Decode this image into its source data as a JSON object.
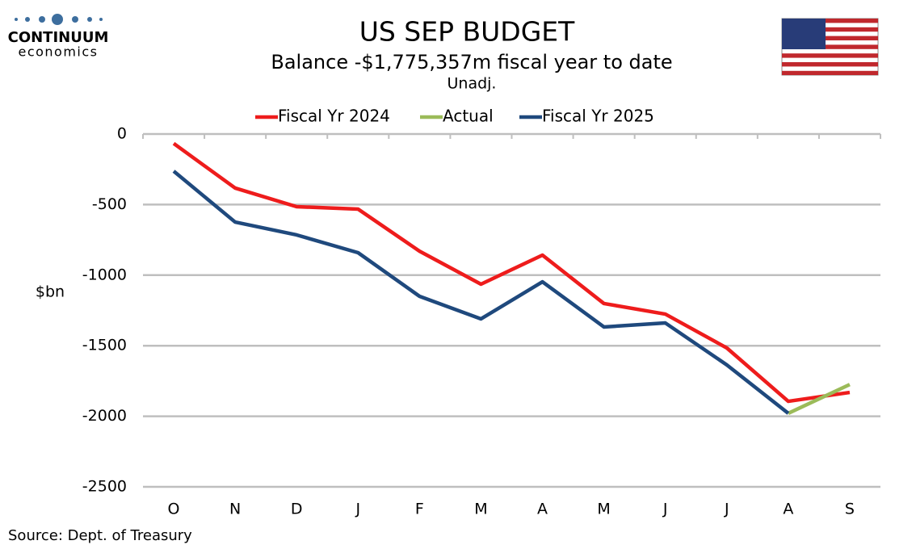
{
  "logo": {
    "name": "CONTINUUM",
    "tagline": "economics"
  },
  "chart_data": {
    "type": "line",
    "title": "US SEP BUDGET",
    "subtitle": "Balance  -$1,775,357m  fiscal year to date",
    "note": "Unadj.",
    "y_label": "$bn",
    "source": "Source: Dept. of Treasury",
    "categories": [
      "O",
      "N",
      "D",
      "J",
      "F",
      "M",
      "A",
      "M",
      "J",
      "J",
      "A",
      "S"
    ],
    "series": [
      {
        "name": "Fiscal Yr 2024",
        "color": "#ee1c1c",
        "values": [
          -67,
          -383,
          -515,
          -532,
          -830,
          -1064,
          -858,
          -1201,
          -1276,
          -1516,
          -1894,
          -1831
        ]
      },
      {
        "name": "Actual",
        "color": "#9bbb59",
        "values": [
          null,
          null,
          null,
          null,
          null,
          null,
          null,
          null,
          null,
          null,
          -1979,
          -1775
        ]
      },
      {
        "name": "Fiscal Yr 2025",
        "color": "#1f497d",
        "values": [
          -263,
          -624,
          -715,
          -841,
          -1150,
          -1310,
          -1047,
          -1367,
          -1339,
          -1636,
          -1979,
          null
        ]
      }
    ],
    "ylim": [
      -2500,
      0
    ],
    "yticks": [
      0,
      -500,
      -1000,
      -1500,
      -2000,
      -2500
    ],
    "grid": true,
    "legend": "top"
  }
}
